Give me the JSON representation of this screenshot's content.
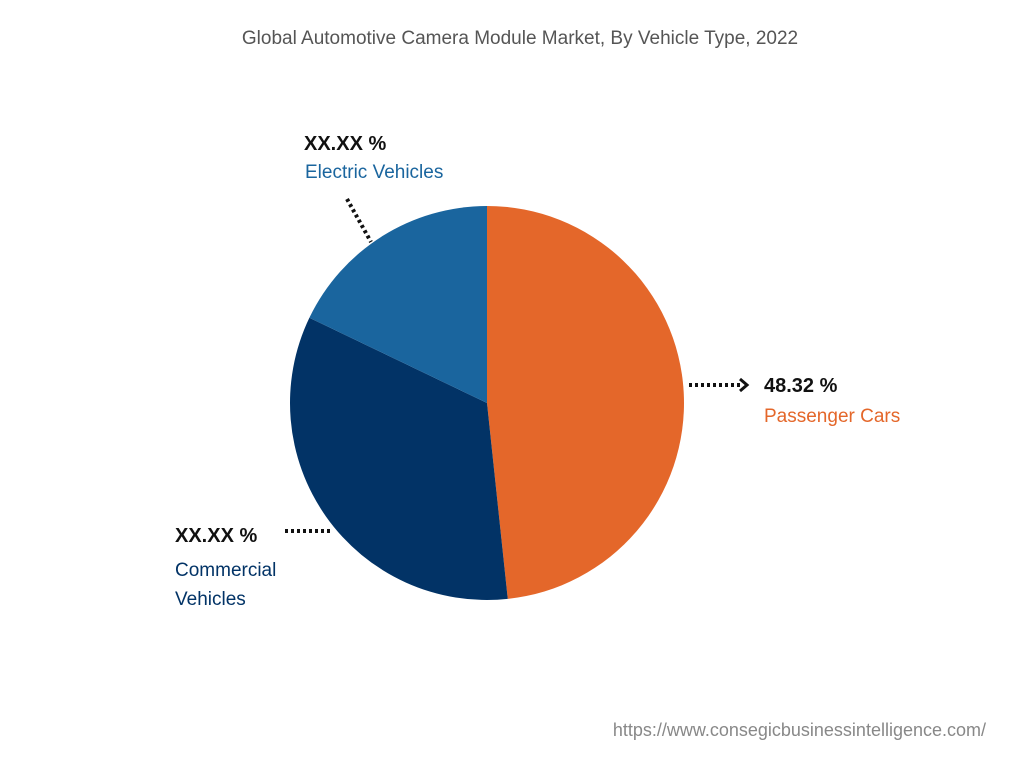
{
  "chart_data": {
    "type": "pie",
    "title": "Global Automotive Camera Module Market, By Vehicle Type, 2022",
    "slices": [
      {
        "name": "Passenger Cars",
        "value": 48.32,
        "label": "48.32 %",
        "color": "#E4672A"
      },
      {
        "name": "Commercial Vehicles",
        "value": 33.8,
        "label": "XX.XX %",
        "color": "#023366"
      },
      {
        "name": "Electric Vehicles",
        "value": 17.88,
        "label": "XX.XX %",
        "color": "#1A659E"
      }
    ],
    "start_angle": "top, clockwise"
  },
  "labels": {
    "commercial_line1": "Commercial",
    "commercial_line2": "Vehicles"
  },
  "footer": {
    "url": "https://www.consegicbusinessintelligence.com/"
  }
}
